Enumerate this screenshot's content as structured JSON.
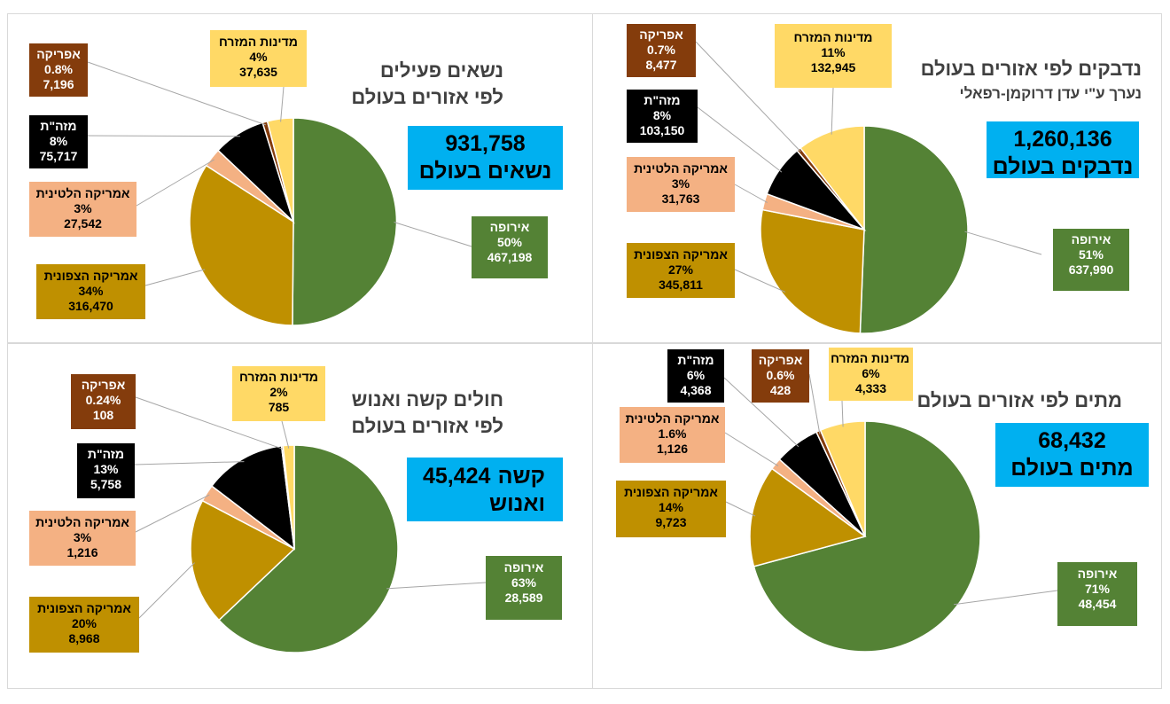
{
  "colors": {
    "europe": "#548235",
    "north_america": "#bf9000",
    "latin_america": "#f4b183",
    "east": "#000000",
    "africa": "#843c0c",
    "middle_east_states": "#ffd966",
    "total_box": "#00b0f0"
  },
  "chart_data": [
    {
      "type": "pie",
      "title": "נדבקים לפי אזורים בעולם",
      "subtitle": "נערך ע\"י עדן דרוקמן-רפאלי",
      "total_number": "1,260,136",
      "total_label": "נדבקים בעולם",
      "slices": [
        {
          "name": "אירופה",
          "percent": "51%",
          "value": 637990,
          "value_label": "637,990",
          "color": "#548235"
        },
        {
          "name": "אמריקה הצפונית",
          "percent": "27%",
          "value": 345811,
          "value_label": "345,811",
          "color": "#bf9000"
        },
        {
          "name": "אמריקה הלטינית",
          "percent": "3%",
          "value": 31763,
          "value_label": "31,763",
          "color": "#f4b183"
        },
        {
          "name": "מזה\"ת",
          "percent": "8%",
          "value": 103150,
          "value_label": "103,150",
          "color": "#000000"
        },
        {
          "name": "אפריקה",
          "percent": "0.7%",
          "value": 8477,
          "value_label": "8,477",
          "color": "#843c0c"
        },
        {
          "name": "מדינות המזרח",
          "percent": "11%",
          "value": 132945,
          "value_label": "132,945",
          "color": "#ffd966"
        }
      ]
    },
    {
      "type": "pie",
      "title": "נשאים פעילים",
      "title_line2": "לפי אזורים בעולם",
      "total_number": "931,758",
      "total_label": "נשאים בעולם",
      "slices": [
        {
          "name": "אירופה",
          "percent": "50%",
          "value": 467198,
          "value_label": "467,198",
          "color": "#548235"
        },
        {
          "name": "אמריקה הצפונית",
          "percent": "34%",
          "value": 316470,
          "value_label": "316,470",
          "color": "#bf9000"
        },
        {
          "name": "אמריקה הלטינית",
          "percent": "3%",
          "value": 27542,
          "value_label": "27,542",
          "color": "#f4b183"
        },
        {
          "name": "מזה\"ת",
          "percent": "8%",
          "value": 75717,
          "value_label": "75,717",
          "color": "#000000"
        },
        {
          "name": "אפריקה",
          "percent": "0.8%",
          "value": 7196,
          "value_label": "7,196",
          "color": "#843c0c"
        },
        {
          "name": "מדינות המזרח",
          "percent": "4%",
          "value": 37635,
          "value_label": "37,635",
          "color": "#ffd966"
        }
      ]
    },
    {
      "type": "pie",
      "title": "מתים לפי אזורים בעולם",
      "total_number": "68,432",
      "total_label": "מתים בעולם",
      "slices": [
        {
          "name": "אירופה",
          "percent": "71%",
          "value": 48454,
          "value_label": "48,454",
          "color": "#548235"
        },
        {
          "name": "אמריקה הצפונית",
          "percent": "14%",
          "value": 9723,
          "value_label": "9,723",
          "color": "#bf9000"
        },
        {
          "name": "אמריקה הלטינית",
          "percent": "1.6%",
          "value": 1126,
          "value_label": "1,126",
          "color": "#f4b183"
        },
        {
          "name": "מזה\"ת",
          "percent": "6%",
          "value": 4368,
          "value_label": "4,368",
          "color": "#000000"
        },
        {
          "name": "אפריקה",
          "percent": "0.6%",
          "value": 428,
          "value_label": "428",
          "color": "#843c0c"
        },
        {
          "name": "מדינות המזרח",
          "percent": "6%",
          "value": 4333,
          "value_label": "4,333",
          "color": "#ffd966"
        }
      ]
    },
    {
      "type": "pie",
      "title": "חולים קשה ואנוש",
      "title_line2": "לפי אזורים בעולם",
      "total_number": "45,424",
      "total_label": "קשה",
      "total_label_line2": "ואנוש",
      "slices": [
        {
          "name": "אירופה",
          "percent": "63%",
          "value": 28589,
          "value_label": "28,589",
          "color": "#548235"
        },
        {
          "name": "אמריקה הצפונית",
          "percent": "20%",
          "value": 8968,
          "value_label": "8,968",
          "color": "#bf9000"
        },
        {
          "name": "אמריקה הלטינית",
          "percent": "3%",
          "value": 1216,
          "value_label": "1,216",
          "color": "#f4b183"
        },
        {
          "name": "מזה\"ת",
          "percent": "13%",
          "value": 5758,
          "value_label": "5,758",
          "color": "#000000"
        },
        {
          "name": "אפריקה",
          "percent": "0.24%",
          "value": 108,
          "value_label": "108",
          "color": "#843c0c"
        },
        {
          "name": "מדינות המזרח",
          "percent": "2%",
          "value": 785,
          "value_label": "785",
          "color": "#ffd966"
        }
      ]
    }
  ]
}
